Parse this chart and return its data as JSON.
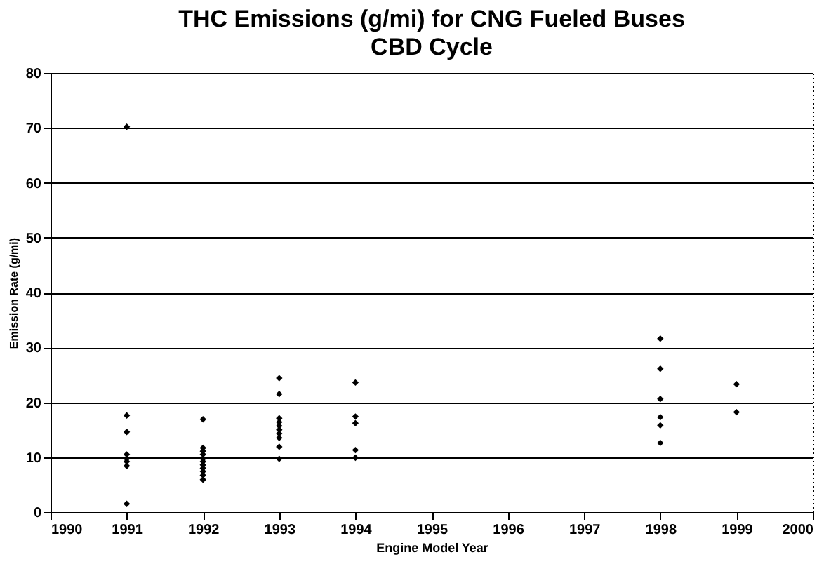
{
  "chart_data": {
    "type": "scatter",
    "title": "THC Emissions (g/mi) for CNG Fueled Buses",
    "subtitle": "CBD Cycle",
    "xlabel": "Engine Model Year",
    "ylabel": "Emission Rate (g/mi)",
    "x": [
      1991,
      1991,
      1991,
      1991,
      1991,
      1991,
      1991,
      1991,
      1992,
      1992,
      1992,
      1992,
      1992,
      1992,
      1992,
      1992,
      1992,
      1992,
      1992,
      1993,
      1993,
      1993,
      1993,
      1993,
      1993,
      1993,
      1993,
      1993,
      1993,
      1994,
      1994,
      1994,
      1994,
      1994,
      1998,
      1998,
      1998,
      1998,
      1998,
      1998,
      1999,
      1999
    ],
    "series": [
      {
        "color": "#000000",
        "values": [
          70.2,
          17.6,
          14.6,
          10.5,
          9.7,
          9.2,
          8.4,
          1.5,
          16.9,
          11.7,
          11.1,
          10.5,
          9.7,
          9.2,
          8.6,
          8.0,
          7.4,
          6.7,
          5.9,
          24.4,
          21.5,
          17.1,
          16.4,
          15.7,
          15.0,
          14.3,
          13.5,
          11.9,
          9.7,
          23.6,
          17.4,
          16.2,
          11.3,
          9.9,
          31.6,
          26.1,
          20.6,
          17.3,
          15.8,
          12.6,
          23.3,
          18.2
        ]
      }
    ],
    "xlim": [
      1990,
      2000
    ],
    "xticks": [
      1990,
      1991,
      1992,
      1993,
      1994,
      1995,
      1996,
      1997,
      1998,
      1999,
      2000
    ],
    "ylim": [
      0,
      80
    ],
    "yticks": [
      0,
      10,
      20,
      30,
      40,
      50,
      60,
      70,
      80
    ],
    "grid": "y",
    "marker": "diamond",
    "legend": false
  }
}
